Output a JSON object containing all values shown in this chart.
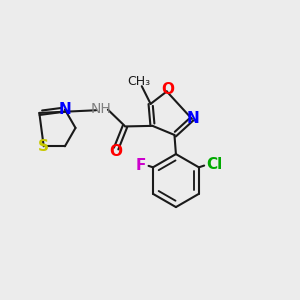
{
  "background_color": "#ececec",
  "figsize": [
    3.0,
    3.0
  ],
  "dpi": 100,
  "line_color": "#1a1a1a",
  "lw": 1.5,
  "colors": {
    "N": "#0000ff",
    "O": "#ff0000",
    "S": "#c8c800",
    "Cl": "#00aa00",
    "F": "#cc00cc",
    "H": "#808080",
    "C": "#1a1a1a"
  }
}
